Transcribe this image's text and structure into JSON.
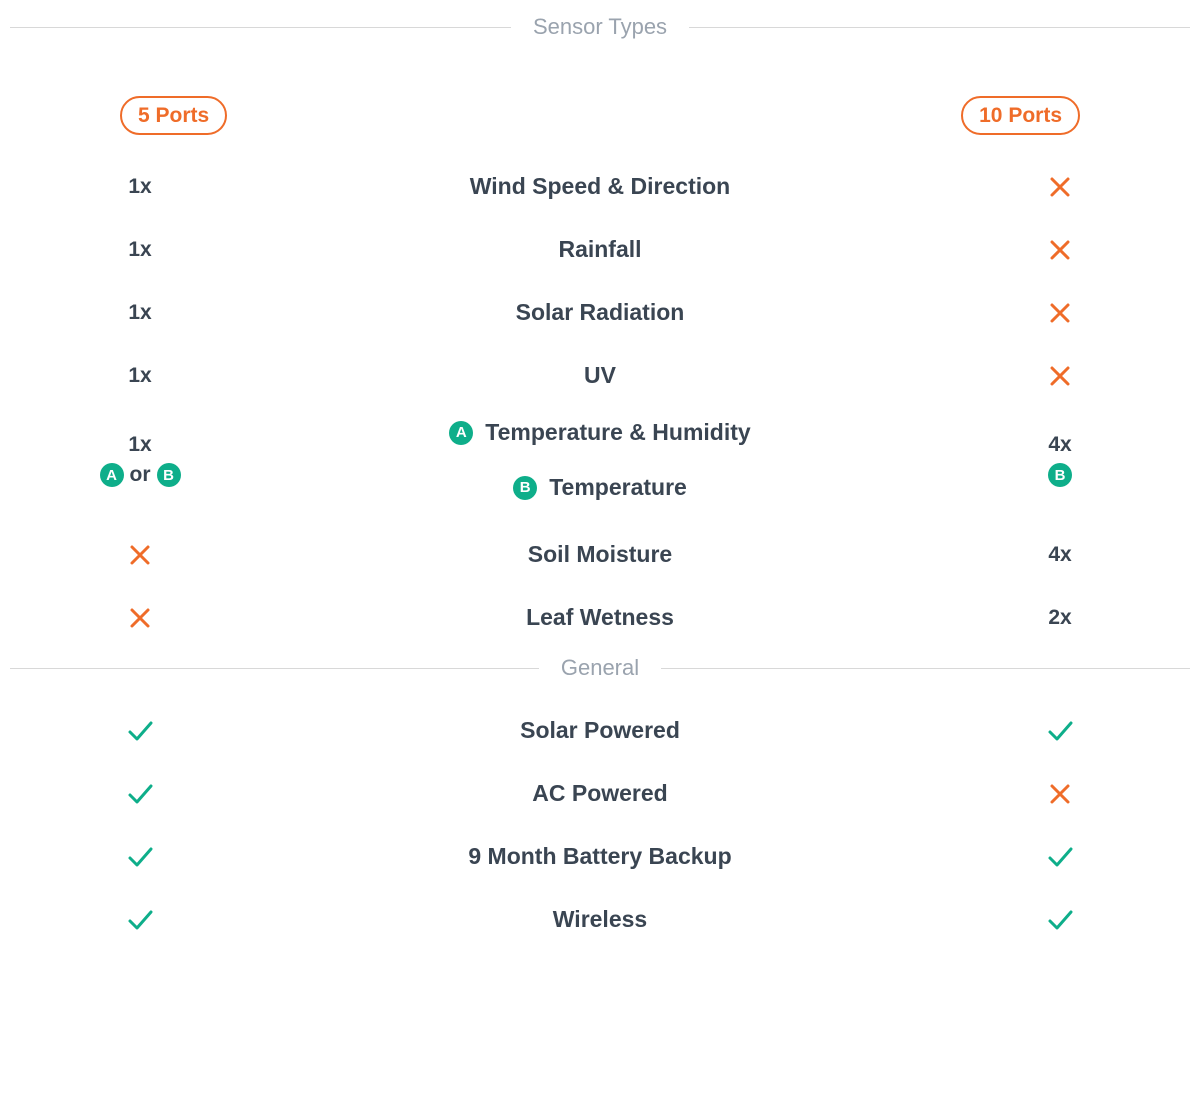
{
  "colors": {
    "text": "#3a4552",
    "muted": "#9aa3ae",
    "orange": "#ef6c29",
    "teal": "#0eae8a",
    "line": "#d8d8d8",
    "bg": "#ffffff"
  },
  "sections": {
    "sensor": "Sensor Types",
    "general": "General"
  },
  "headers": {
    "left": "5 Ports",
    "right": "10 Ports"
  },
  "sensor_rows": [
    {
      "left": "1x",
      "center": "Wind Speed & Direction",
      "right": "x"
    },
    {
      "left": "1x",
      "center": "Rainfall",
      "right": "x"
    },
    {
      "left": "1x",
      "center": "Solar Radiation",
      "right": "x"
    },
    {
      "left": "1x",
      "center": "UV",
      "right": "x"
    }
  ],
  "combo": {
    "left_top": "1x",
    "or": "or",
    "a_label": "A",
    "b_label": "B",
    "center_a": "Temperature & Humidity",
    "center_b": "Temperature",
    "right_top": "4x"
  },
  "sensor_rows2": [
    {
      "left": "x",
      "center": "Soil Moisture",
      "right": "4x"
    },
    {
      "left": "x",
      "center": "Leaf Wetness",
      "right": "2x"
    }
  ],
  "general_rows": [
    {
      "left": "check",
      "center": "Solar Powered",
      "right": "check"
    },
    {
      "left": "check",
      "center": "AC Powered",
      "right": "x"
    },
    {
      "left": "check",
      "center": "9 Month Battery Backup",
      "right": "check"
    },
    {
      "left": "check",
      "center": "Wireless",
      "right": "check"
    }
  ]
}
